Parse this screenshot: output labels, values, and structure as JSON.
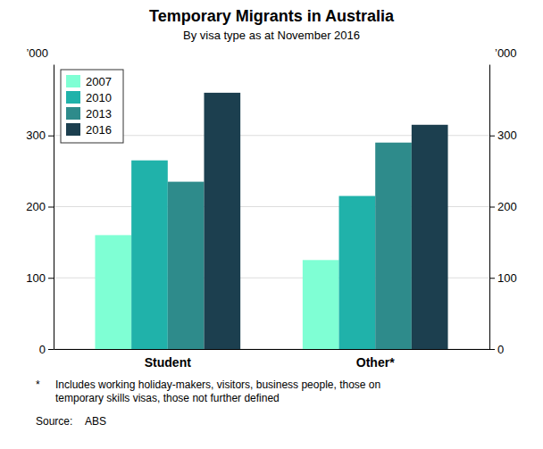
{
  "chart_data": {
    "type": "bar",
    "title": "Temporary Migrants in Australia",
    "subtitle": "By visa type as at November 2016",
    "categories": [
      "Student",
      "Other*"
    ],
    "series": [
      {
        "name": "2007",
        "color": "#7FFFD4",
        "values": [
          160,
          125
        ]
      },
      {
        "name": "2010",
        "color": "#20B2AA",
        "values": [
          265,
          215
        ]
      },
      {
        "name": "2013",
        "color": "#2E8B8B",
        "values": [
          235,
          290
        ]
      },
      {
        "name": "2016",
        "color": "#1C3F4F",
        "values": [
          360,
          315
        ]
      }
    ],
    "ylim": [
      0,
      400
    ],
    "yticks": [
      0,
      100,
      200,
      300
    ],
    "y2lim": [
      0,
      400
    ],
    "y2ticks": [
      0,
      100,
      200,
      300
    ],
    "ylabel": "’000",
    "y2label": "’000",
    "grid": true,
    "legend": "upper left",
    "annotations": [
      {
        "label": "*",
        "text": "Includes working holiday-makers, visitors, business people, those on\ntemporary skills visas, those not further defined"
      },
      {
        "label": "Source:",
        "text": "ABS"
      }
    ]
  }
}
